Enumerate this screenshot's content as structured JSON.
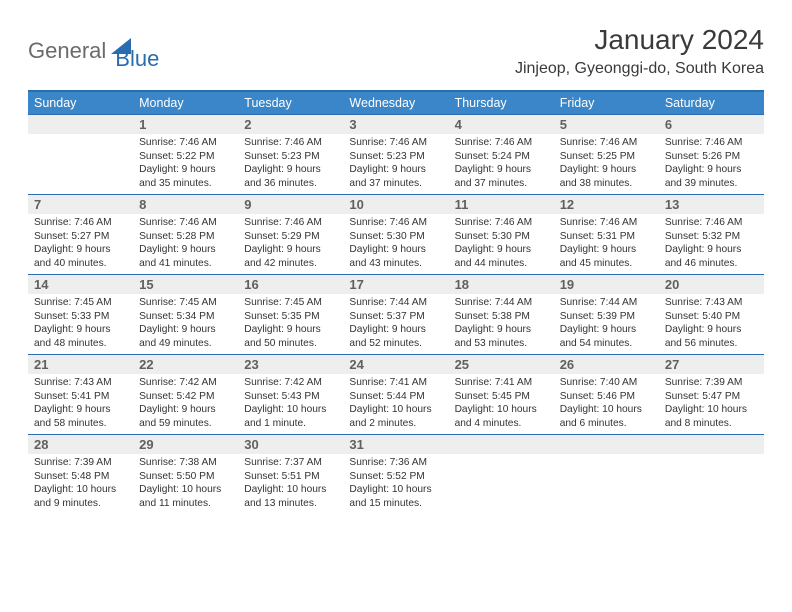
{
  "brand": {
    "gray": "General",
    "blue": "Blue"
  },
  "title": "January 2024",
  "location": "Jinjeop, Gyeonggi-do, South Korea",
  "dow": [
    "Sunday",
    "Monday",
    "Tuesday",
    "Wednesday",
    "Thursday",
    "Friday",
    "Saturday"
  ],
  "colors": {
    "header_bg": "#3a86c8",
    "rule": "#2a6cb0",
    "daynum_bg": "#eeeeee",
    "text": "#333333"
  },
  "typography": {
    "title_fontsize": 28,
    "location_fontsize": 16,
    "dow_fontsize": 12.5,
    "daynum_fontsize": 13,
    "body_fontsize": 10.2
  },
  "weeks": [
    [
      {
        "n": "",
        "lines": []
      },
      {
        "n": "1",
        "lines": [
          "Sunrise: 7:46 AM",
          "Sunset: 5:22 PM",
          "Daylight: 9 hours",
          "and 35 minutes."
        ]
      },
      {
        "n": "2",
        "lines": [
          "Sunrise: 7:46 AM",
          "Sunset: 5:23 PM",
          "Daylight: 9 hours",
          "and 36 minutes."
        ]
      },
      {
        "n": "3",
        "lines": [
          "Sunrise: 7:46 AM",
          "Sunset: 5:23 PM",
          "Daylight: 9 hours",
          "and 37 minutes."
        ]
      },
      {
        "n": "4",
        "lines": [
          "Sunrise: 7:46 AM",
          "Sunset: 5:24 PM",
          "Daylight: 9 hours",
          "and 37 minutes."
        ]
      },
      {
        "n": "5",
        "lines": [
          "Sunrise: 7:46 AM",
          "Sunset: 5:25 PM",
          "Daylight: 9 hours",
          "and 38 minutes."
        ]
      },
      {
        "n": "6",
        "lines": [
          "Sunrise: 7:46 AM",
          "Sunset: 5:26 PM",
          "Daylight: 9 hours",
          "and 39 minutes."
        ]
      }
    ],
    [
      {
        "n": "7",
        "lines": [
          "Sunrise: 7:46 AM",
          "Sunset: 5:27 PM",
          "Daylight: 9 hours",
          "and 40 minutes."
        ]
      },
      {
        "n": "8",
        "lines": [
          "Sunrise: 7:46 AM",
          "Sunset: 5:28 PM",
          "Daylight: 9 hours",
          "and 41 minutes."
        ]
      },
      {
        "n": "9",
        "lines": [
          "Sunrise: 7:46 AM",
          "Sunset: 5:29 PM",
          "Daylight: 9 hours",
          "and 42 minutes."
        ]
      },
      {
        "n": "10",
        "lines": [
          "Sunrise: 7:46 AM",
          "Sunset: 5:30 PM",
          "Daylight: 9 hours",
          "and 43 minutes."
        ]
      },
      {
        "n": "11",
        "lines": [
          "Sunrise: 7:46 AM",
          "Sunset: 5:30 PM",
          "Daylight: 9 hours",
          "and 44 minutes."
        ]
      },
      {
        "n": "12",
        "lines": [
          "Sunrise: 7:46 AM",
          "Sunset: 5:31 PM",
          "Daylight: 9 hours",
          "and 45 minutes."
        ]
      },
      {
        "n": "13",
        "lines": [
          "Sunrise: 7:46 AM",
          "Sunset: 5:32 PM",
          "Daylight: 9 hours",
          "and 46 minutes."
        ]
      }
    ],
    [
      {
        "n": "14",
        "lines": [
          "Sunrise: 7:45 AM",
          "Sunset: 5:33 PM",
          "Daylight: 9 hours",
          "and 48 minutes."
        ]
      },
      {
        "n": "15",
        "lines": [
          "Sunrise: 7:45 AM",
          "Sunset: 5:34 PM",
          "Daylight: 9 hours",
          "and 49 minutes."
        ]
      },
      {
        "n": "16",
        "lines": [
          "Sunrise: 7:45 AM",
          "Sunset: 5:35 PM",
          "Daylight: 9 hours",
          "and 50 minutes."
        ]
      },
      {
        "n": "17",
        "lines": [
          "Sunrise: 7:44 AM",
          "Sunset: 5:37 PM",
          "Daylight: 9 hours",
          "and 52 minutes."
        ]
      },
      {
        "n": "18",
        "lines": [
          "Sunrise: 7:44 AM",
          "Sunset: 5:38 PM",
          "Daylight: 9 hours",
          "and 53 minutes."
        ]
      },
      {
        "n": "19",
        "lines": [
          "Sunrise: 7:44 AM",
          "Sunset: 5:39 PM",
          "Daylight: 9 hours",
          "and 54 minutes."
        ]
      },
      {
        "n": "20",
        "lines": [
          "Sunrise: 7:43 AM",
          "Sunset: 5:40 PM",
          "Daylight: 9 hours",
          "and 56 minutes."
        ]
      }
    ],
    [
      {
        "n": "21",
        "lines": [
          "Sunrise: 7:43 AM",
          "Sunset: 5:41 PM",
          "Daylight: 9 hours",
          "and 58 minutes."
        ]
      },
      {
        "n": "22",
        "lines": [
          "Sunrise: 7:42 AM",
          "Sunset: 5:42 PM",
          "Daylight: 9 hours",
          "and 59 minutes."
        ]
      },
      {
        "n": "23",
        "lines": [
          "Sunrise: 7:42 AM",
          "Sunset: 5:43 PM",
          "Daylight: 10 hours",
          "and 1 minute."
        ]
      },
      {
        "n": "24",
        "lines": [
          "Sunrise: 7:41 AM",
          "Sunset: 5:44 PM",
          "Daylight: 10 hours",
          "and 2 minutes."
        ]
      },
      {
        "n": "25",
        "lines": [
          "Sunrise: 7:41 AM",
          "Sunset: 5:45 PM",
          "Daylight: 10 hours",
          "and 4 minutes."
        ]
      },
      {
        "n": "26",
        "lines": [
          "Sunrise: 7:40 AM",
          "Sunset: 5:46 PM",
          "Daylight: 10 hours",
          "and 6 minutes."
        ]
      },
      {
        "n": "27",
        "lines": [
          "Sunrise: 7:39 AM",
          "Sunset: 5:47 PM",
          "Daylight: 10 hours",
          "and 8 minutes."
        ]
      }
    ],
    [
      {
        "n": "28",
        "lines": [
          "Sunrise: 7:39 AM",
          "Sunset: 5:48 PM",
          "Daylight: 10 hours",
          "and 9 minutes."
        ]
      },
      {
        "n": "29",
        "lines": [
          "Sunrise: 7:38 AM",
          "Sunset: 5:50 PM",
          "Daylight: 10 hours",
          "and 11 minutes."
        ]
      },
      {
        "n": "30",
        "lines": [
          "Sunrise: 7:37 AM",
          "Sunset: 5:51 PM",
          "Daylight: 10 hours",
          "and 13 minutes."
        ]
      },
      {
        "n": "31",
        "lines": [
          "Sunrise: 7:36 AM",
          "Sunset: 5:52 PM",
          "Daylight: 10 hours",
          "and 15 minutes."
        ]
      },
      {
        "n": "",
        "lines": []
      },
      {
        "n": "",
        "lines": []
      },
      {
        "n": "",
        "lines": []
      }
    ]
  ]
}
